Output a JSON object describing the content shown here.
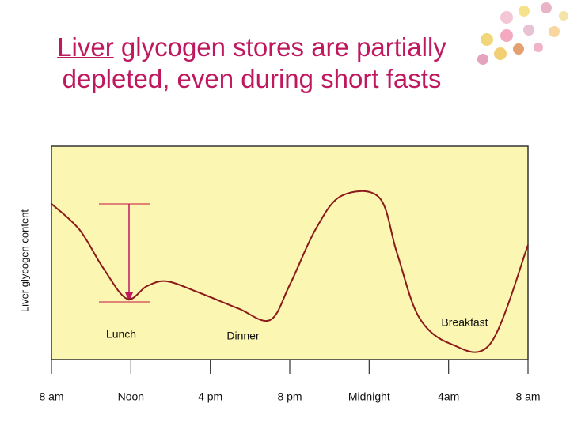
{
  "chart_data": {
    "type": "line",
    "title_underlined": "Liver",
    "title": "glycogen stores are partially depleted, even during short fasts",
    "y_label": "Liver glycogen content",
    "x": [
      0,
      1.4,
      2.6,
      3.8,
      4.8,
      5.8,
      7.4,
      9.4,
      11,
      12,
      13.3,
      14.6,
      16.5,
      17.4,
      18.5,
      20.1,
      22.1,
      24
    ],
    "series": [
      {
        "name": "Liver glycogen",
        "color": "#8b1a1a",
        "values": [
          73,
          61,
          43,
          28.5,
          34.4,
          36.7,
          31.5,
          24,
          18.5,
          35,
          61,
          76.7,
          76,
          50,
          20,
          7.4,
          7.4,
          53.7
        ]
      }
    ],
    "xlim": [
      0,
      24
    ],
    "xticks": [
      {
        "value": 0,
        "label": "8 am"
      },
      {
        "value": 4,
        "label": "Noon"
      },
      {
        "value": 8,
        "label": "4 pm"
      },
      {
        "value": 12,
        "label": "8 pm"
      },
      {
        "value": 16,
        "label": "Midnight"
      },
      {
        "value": 20,
        "label": "4am"
      },
      {
        "value": 24,
        "label": "8 am"
      }
    ],
    "ylim": [
      0,
      100
    ],
    "annotations": [
      "Lunch",
      "Dinner",
      "Breakfast"
    ]
  }
}
